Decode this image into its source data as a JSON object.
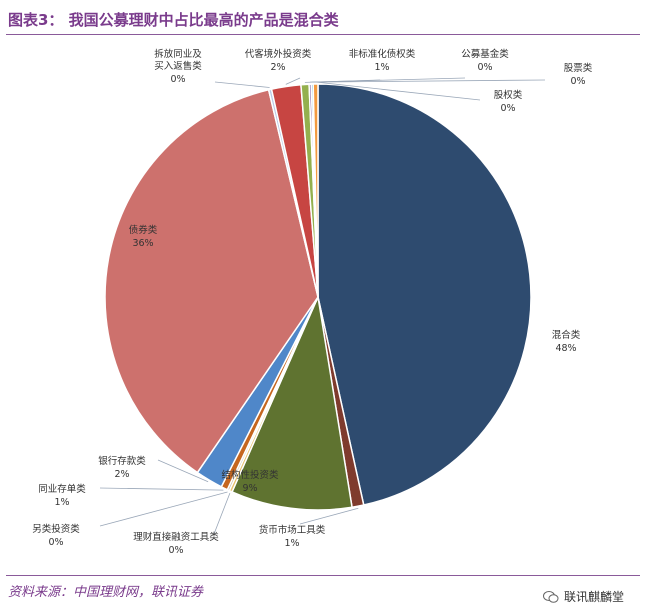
{
  "title": "图表3： 我国公募理财中占比最高的产品是混合类",
  "source": "资料来源：中国理财网，联讯证券",
  "watermark": "联讯麒麟堂",
  "chart_data": {
    "type": "pie",
    "slices": [
      {
        "name": "混合类",
        "value": 48,
        "label": "48%",
        "color": "#2e4b6f"
      },
      {
        "name": "货币市场工具类",
        "value": 1,
        "label": "1%",
        "color": "#7f3b2d"
      },
      {
        "name": "结构性投资类",
        "value": 9,
        "label": "9%",
        "color": "#5f7330"
      },
      {
        "name": "理财直接融资工具类",
        "value": 0,
        "label": "0%",
        "color": "#e8c06a"
      },
      {
        "name": "另类投资类",
        "value": 0,
        "label": "0%",
        "color": "#c9b79c"
      },
      {
        "name": "同业存单类",
        "value": 1,
        "label": "1%",
        "color": "#c5661f"
      },
      {
        "name": "银行存款类",
        "value": 2,
        "label": "2%",
        "color": "#4f87c9"
      },
      {
        "name": "债券类",
        "value": 36,
        "label": "36%",
        "color": "#cd716d"
      },
      {
        "name": "拆放同业及买入返售类",
        "value": 0,
        "label": "0%",
        "color": "#b9c9e6"
      },
      {
        "name": "代客境外投资类",
        "value": 2,
        "label": "2%",
        "color": "#c74542"
      },
      {
        "name": "非标准化债权类",
        "value": 1,
        "label": "1%",
        "color": "#94b04e"
      },
      {
        "name": "公募基金类",
        "value": 0,
        "label": "0%",
        "color": "#7d5fa3"
      },
      {
        "name": "股票类",
        "value": 0,
        "label": "0%",
        "color": "#4aa7c0"
      },
      {
        "name": "股权类",
        "value": 0,
        "label": "0%",
        "color": "#f39a40"
      }
    ]
  }
}
